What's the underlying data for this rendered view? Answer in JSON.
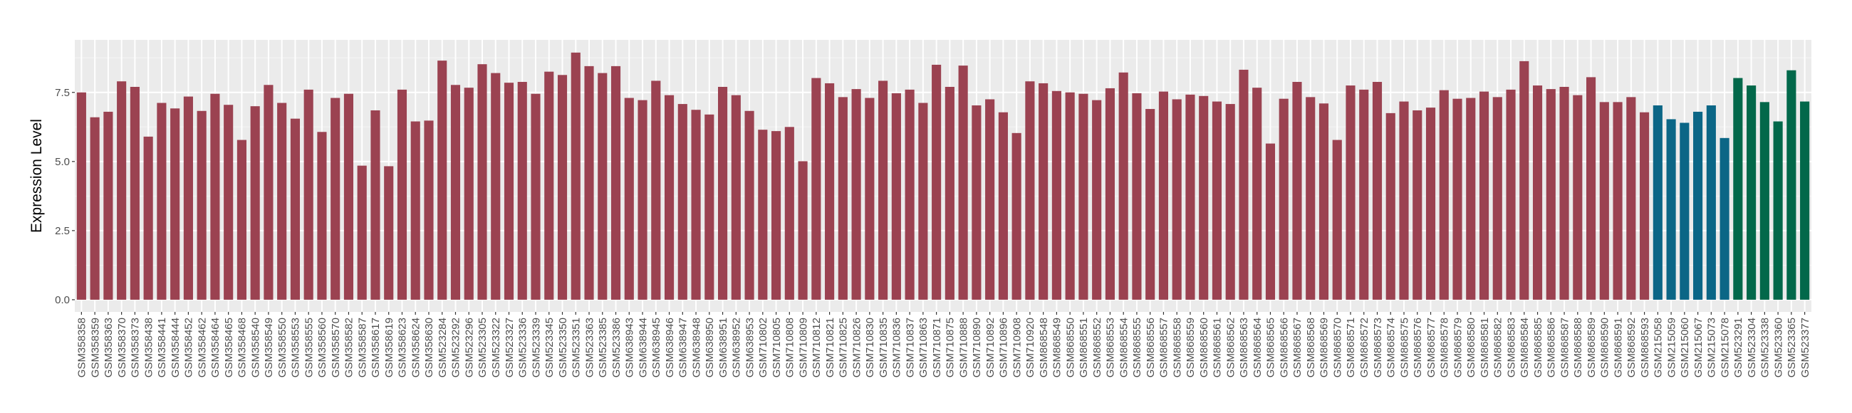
{
  "chart_data": {
    "type": "bar",
    "title": "",
    "xlabel": "",
    "ylabel": "Expression Level",
    "ylim": [
      -0.44,
      9.4
    ],
    "yticks": [
      0.0,
      2.5,
      5.0,
      7.5
    ],
    "ytick_labels": [
      "0.0",
      "2.5",
      "5.0",
      "7.5"
    ],
    "grid": true,
    "legend": "none",
    "palette": [
      "#9b4251",
      "#0b6686",
      "#02684a"
    ],
    "categories": [
      "GSM358358",
      "GSM358359",
      "GSM358363",
      "GSM358370",
      "GSM358373",
      "GSM358438",
      "GSM358441",
      "GSM358444",
      "GSM358452",
      "GSM358462",
      "GSM358464",
      "GSM358465",
      "GSM358468",
      "GSM358540",
      "GSM358549",
      "GSM358550",
      "GSM358553",
      "GSM358555",
      "GSM358560",
      "GSM358570",
      "GSM358582",
      "GSM358587",
      "GSM358617",
      "GSM358619",
      "GSM358623",
      "GSM358624",
      "GSM358630",
      "GSM523284",
      "GSM523292",
      "GSM523296",
      "GSM523305",
      "GSM523322",
      "GSM523327",
      "GSM523336",
      "GSM523339",
      "GSM523345",
      "GSM523350",
      "GSM523351",
      "GSM523363",
      "GSM523385",
      "GSM523386",
      "GSM638943",
      "GSM638944",
      "GSM638945",
      "GSM638946",
      "GSM638947",
      "GSM638948",
      "GSM638950",
      "GSM638951",
      "GSM638952",
      "GSM638953",
      "GSM710802",
      "GSM710805",
      "GSM710808",
      "GSM710809",
      "GSM710812",
      "GSM710821",
      "GSM710825",
      "GSM710826",
      "GSM710830",
      "GSM710835",
      "GSM710836",
      "GSM710837",
      "GSM710863",
      "GSM710871",
      "GSM710875",
      "GSM710888",
      "GSM710890",
      "GSM710892",
      "GSM710896",
      "GSM710908",
      "GSM710920",
      "GSM868548",
      "GSM868549",
      "GSM868550",
      "GSM868551",
      "GSM868552",
      "GSM868553",
      "GSM868554",
      "GSM868555",
      "GSM868556",
      "GSM868557",
      "GSM868558",
      "GSM868559",
      "GSM868560",
      "GSM868561",
      "GSM868562",
      "GSM868563",
      "GSM868564",
      "GSM868565",
      "GSM868566",
      "GSM868567",
      "GSM868568",
      "GSM868569",
      "GSM868570",
      "GSM868571",
      "GSM868572",
      "GSM868573",
      "GSM868574",
      "GSM868575",
      "GSM868576",
      "GSM868577",
      "GSM868578",
      "GSM868579",
      "GSM868580",
      "GSM868581",
      "GSM868582",
      "GSM868583",
      "GSM868584",
      "GSM868585",
      "GSM868586",
      "GSM868587",
      "GSM868588",
      "GSM868589",
      "GSM868590",
      "GSM868591",
      "GSM868592",
      "GSM868593",
      "GSM215058",
      "GSM215059",
      "GSM215060",
      "GSM215067",
      "GSM215073",
      "GSM215078",
      "GSM523291",
      "GSM523304",
      "GSM523338",
      "GSM523360",
      "GSM523365",
      "GSM523377"
    ],
    "values": [
      7.5,
      6.6,
      6.8,
      7.9,
      7.7,
      5.9,
      7.12,
      6.92,
      7.35,
      6.83,
      7.45,
      7.05,
      5.78,
      7.0,
      7.77,
      7.12,
      6.55,
      7.6,
      6.07,
      7.3,
      7.45,
      4.85,
      6.85,
      4.83,
      7.6,
      6.45,
      6.48,
      8.65,
      7.77,
      7.67,
      8.52,
      8.2,
      7.85,
      7.88,
      7.45,
      8.25,
      8.13,
      8.94,
      8.45,
      8.2,
      8.45,
      7.3,
      7.22,
      7.92,
      7.4,
      7.08,
      6.87,
      6.7,
      7.7,
      7.4,
      6.83,
      6.15,
      6.1,
      6.25,
      5.01,
      8.02,
      7.83,
      7.33,
      7.62,
      7.3,
      7.92,
      7.47,
      7.6,
      7.12,
      8.5,
      7.7,
      8.47,
      7.03,
      7.25,
      6.78,
      6.03,
      7.9,
      7.83,
      7.55,
      7.5,
      7.45,
      7.22,
      7.65,
      8.22,
      7.47,
      6.9,
      7.53,
      7.25,
      7.42,
      7.37,
      7.17,
      7.08,
      8.32,
      7.67,
      5.65,
      7.27,
      7.88,
      7.33,
      7.1,
      5.78,
      7.75,
      7.6,
      7.88,
      6.75,
      7.17,
      6.85,
      6.95,
      7.58,
      7.27,
      7.3,
      7.53,
      7.33,
      7.6,
      8.63,
      7.75,
      7.62,
      7.7,
      7.4,
      8.05,
      7.15,
      7.15,
      7.33,
      6.78,
      7.03,
      6.53,
      6.4,
      6.8,
      7.03,
      5.85,
      8.02,
      7.75,
      7.15,
      6.45,
      8.3,
      7.17
    ],
    "color_index": [
      0,
      0,
      0,
      0,
      0,
      0,
      0,
      0,
      0,
      0,
      0,
      0,
      0,
      0,
      0,
      0,
      0,
      0,
      0,
      0,
      0,
      0,
      0,
      0,
      0,
      0,
      0,
      0,
      0,
      0,
      0,
      0,
      0,
      0,
      0,
      0,
      0,
      0,
      0,
      0,
      0,
      0,
      0,
      0,
      0,
      0,
      0,
      0,
      0,
      0,
      0,
      0,
      0,
      0,
      0,
      0,
      0,
      0,
      0,
      0,
      0,
      0,
      0,
      0,
      0,
      0,
      0,
      0,
      0,
      0,
      0,
      0,
      0,
      0,
      0,
      0,
      0,
      0,
      0,
      0,
      0,
      0,
      0,
      0,
      0,
      0,
      0,
      0,
      0,
      0,
      0,
      0,
      0,
      0,
      0,
      0,
      0,
      0,
      0,
      0,
      0,
      0,
      0,
      0,
      0,
      0,
      0,
      0,
      0,
      0,
      0,
      0,
      0,
      0,
      0,
      0,
      0,
      0,
      1,
      1,
      1,
      1,
      1,
      1,
      2,
      2,
      2,
      2,
      2,
      2
    ]
  }
}
